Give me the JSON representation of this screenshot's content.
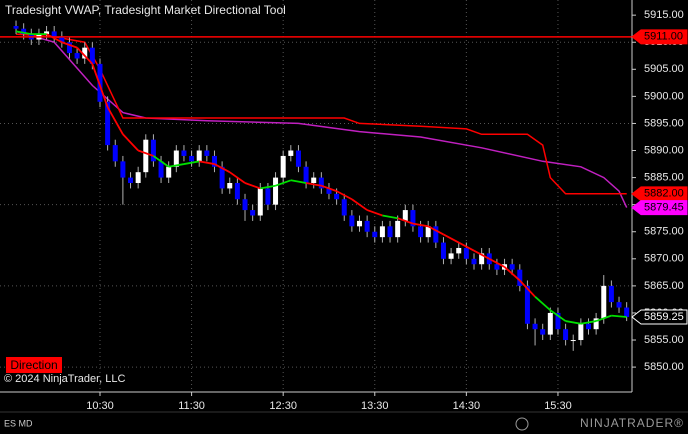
{
  "chart_data": {
    "type": "candlestick",
    "title": "Tradesight VWAP, Tradesight Market Directional Tool",
    "x": [
      575,
      580,
      585,
      590,
      595,
      600,
      605,
      610,
      615,
      620,
      625,
      630,
      635,
      640,
      645,
      650,
      655,
      660,
      665,
      670,
      675,
      680,
      685,
      690,
      695,
      700,
      705,
      710,
      715,
      720,
      725,
      730,
      735,
      740,
      745,
      750,
      755,
      760,
      765,
      770,
      775,
      780,
      785,
      790,
      795,
      800,
      805,
      810,
      815,
      820,
      825,
      830,
      835,
      840,
      845,
      850,
      855,
      860,
      865,
      870,
      875,
      880,
      885,
      890,
      895,
      900,
      905,
      910,
      915,
      920,
      925,
      930,
      935,
      940,
      945,
      950,
      955,
      960,
      965,
      970,
      975
    ],
    "open": [
      5913,
      5912.5,
      5911.5,
      5910.5,
      5911.5,
      5912,
      5911,
      5910,
      5908,
      5907,
      5909,
      5906,
      5899,
      5891,
      5888,
      5885,
      5884,
      5886,
      5892,
      5888,
      5885,
      5887,
      5890,
      5889,
      5888,
      5890,
      5889,
      5887,
      5883,
      5884,
      5881,
      5879,
      5878,
      5883,
      5880,
      5885,
      5889,
      5890,
      5887,
      5884,
      5885,
      5883,
      5882,
      5881,
      5878,
      5876,
      5877,
      5875,
      5874,
      5876,
      5874,
      5877,
      5879,
      5876,
      5874,
      5876,
      5873,
      5870,
      5871,
      5872,
      5870,
      5869,
      5871,
      5869,
      5868,
      5869,
      5868,
      5865,
      5858,
      5857,
      5856,
      5860,
      5857,
      5855,
      5855,
      5858,
      5857,
      5859,
      5865,
      5862,
      5861
    ],
    "high": [
      5914,
      5913.5,
      5912.5,
      5912.5,
      5913,
      5913,
      5912,
      5911,
      5909,
      5910,
      5910,
      5907,
      5900,
      5892,
      5889,
      5886,
      5887,
      5893,
      5893,
      5889,
      5888,
      5891,
      5891,
      5890,
      5891,
      5891,
      5890,
      5888,
      5885,
      5885,
      5882,
      5880,
      5884,
      5884,
      5886,
      5890,
      5891,
      5891,
      5888,
      5886,
      5886,
      5884,
      5883,
      5882,
      5879,
      5878,
      5878,
      5876,
      5877,
      5877,
      5878,
      5880,
      5880,
      5877,
      5877,
      5877,
      5874,
      5872,
      5873,
      5873,
      5871,
      5872,
      5872,
      5870,
      5870,
      5870,
      5869,
      5866,
      5859,
      5858,
      5861,
      5861,
      5858,
      5856,
      5859,
      5859,
      5860,
      5867,
      5866,
      5863,
      5862
    ],
    "low": [
      5911.5,
      5910.5,
      5909.5,
      5909.5,
      5910.5,
      5910,
      5909,
      5907,
      5906,
      5906,
      5905,
      5898,
      5890,
      5887,
      5880,
      5883,
      5883,
      5885,
      5887,
      5884,
      5884,
      5886,
      5888,
      5887,
      5887,
      5888,
      5886,
      5882,
      5882,
      5880,
      5877,
      5877,
      5877,
      5879,
      5879,
      5884,
      5888,
      5886,
      5883,
      5883,
      5882,
      5881,
      5880,
      5877,
      5875,
      5875,
      5874,
      5873,
      5873,
      5873,
      5873,
      5876,
      5875,
      5873,
      5873,
      5872,
      5869,
      5869,
      5870,
      5869,
      5868,
      5868,
      5868,
      5867,
      5867,
      5867,
      5864,
      5857,
      5854,
      5855,
      5855,
      5856,
      5854,
      5853,
      5854,
      5856,
      5856,
      5858,
      5861,
      5860,
      5858.5
    ],
    "close": [
      5912.5,
      5911.5,
      5910.5,
      5911.5,
      5912,
      5911,
      5910,
      5908,
      5907,
      5909,
      5906,
      5899,
      5891,
      5888,
      5885,
      5884,
      5886,
      5892,
      5888,
      5885,
      5887,
      5890,
      5889,
      5888,
      5890,
      5889,
      5887,
      5883,
      5884,
      5881,
      5879,
      5878,
      5883,
      5880,
      5885,
      5889,
      5890,
      5887,
      5884,
      5885,
      5883,
      5882,
      5881,
      5878,
      5876,
      5877,
      5875,
      5874,
      5876,
      5874,
      5877,
      5879,
      5876,
      5874,
      5876,
      5873,
      5870,
      5871,
      5872,
      5870,
      5869,
      5871,
      5869,
      5868,
      5869,
      5868,
      5865,
      5858,
      5857,
      5856,
      5860,
      5857,
      5855,
      5855,
      5858,
      5857,
      5859,
      5865,
      5862,
      5861,
      5859.25
    ],
    "up_color": "#ffffff",
    "down_color": "#0000ff",
    "wick_color": "#b0b0b0",
    "xlim": [
      564.5,
      978.5
    ],
    "xticks": [
      {
        "value": 630,
        "label": "10:30"
      },
      {
        "value": 690,
        "label": "11:30"
      },
      {
        "value": 750,
        "label": "12:30"
      },
      {
        "value": 810,
        "label": "13:30"
      },
      {
        "value": 870,
        "label": "14:30"
      },
      {
        "value": 930,
        "label": "15:30"
      }
    ],
    "ylim": [
      5845.4,
      5917.8
    ],
    "yticks": [
      {
        "value": 5850,
        "label": "5850.00"
      },
      {
        "value": 5855,
        "label": "5855.00"
      },
      {
        "value": 5860,
        "label": "5860.00"
      },
      {
        "value": 5865,
        "label": "5865.00"
      },
      {
        "value": 5870,
        "label": "5870.00"
      },
      {
        "value": 5875,
        "label": "5875.00"
      },
      {
        "value": 5880,
        "label": "5880.00"
      },
      {
        "value": 5885,
        "label": "5885.00"
      },
      {
        "value": 5890,
        "label": "5890.00"
      },
      {
        "value": 5895,
        "label": "5895.00"
      },
      {
        "value": 5900,
        "label": "5900.00"
      },
      {
        "value": 5905,
        "label": "5905.00"
      },
      {
        "value": 5910,
        "label": "5910.00"
      },
      {
        "value": 5915,
        "label": "5915.00"
      }
    ],
    "ygrid": [
      5850,
      5865,
      5880,
      5895,
      5910
    ],
    "grid_color": "#555555",
    "lines": [
      {
        "color": "#c020c0",
        "x": [
          575,
          600,
          625,
          645,
          660,
          700,
          760,
          800,
          840,
          880,
          920,
          945,
          960,
          970,
          975
        ],
        "values": [
          5912,
          5910,
          5902,
          5897,
          5896,
          5895.5,
          5895,
          5893.5,
          5892.5,
          5890.5,
          5888,
          5887,
          5885,
          5882.5,
          5879.45
        ]
      },
      {
        "color": "#ff0000",
        "x": [
          575,
          600,
          620,
          630,
          645,
          700,
          790,
          800,
          840,
          870,
          880,
          910,
          920,
          925,
          935,
          975
        ],
        "values": [
          5911.5,
          5911,
          5910,
          5905,
          5896,
          5896,
          5896,
          5895,
          5894.5,
          5894,
          5893,
          5893,
          5891,
          5885,
          5882,
          5882
        ]
      }
    ],
    "direction_line": {
      "x": [
        575,
        585,
        595,
        605,
        615,
        625,
        635,
        645,
        655,
        665,
        675,
        685,
        695,
        705,
        715,
        725,
        735,
        745,
        755,
        765,
        775,
        785,
        795,
        805,
        815,
        825,
        835,
        845,
        855,
        865,
        875,
        885,
        895,
        905,
        915,
        925,
        935,
        945,
        955,
        965,
        975
      ],
      "values": [
        5912,
        5911.5,
        5911.5,
        5910,
        5909,
        5906,
        5898,
        5893,
        5890,
        5889,
        5887,
        5887.5,
        5888,
        5887.5,
        5886,
        5884,
        5883,
        5883.5,
        5884.5,
        5884,
        5883.5,
        5882.5,
        5881,
        5879,
        5878,
        5877.5,
        5876.5,
        5876,
        5874.5,
        5873,
        5871.5,
        5870,
        5868.5,
        5866,
        5863,
        5860.5,
        5858.5,
        5858,
        5858.5,
        5859.5,
        5859.25
      ],
      "point_colors": [
        "#ff0000",
        "#00e000",
        "#00e000",
        "#ff0000",
        "#ff0000",
        "#ff0000",
        "#ff0000",
        "#ff0000",
        "#ff0000",
        "#ff0000",
        "#00e000",
        "#00e000",
        "#00e000",
        "#ff0000",
        "#ff0000",
        "#ff0000",
        "#ff0000",
        "#00e000",
        "#00e000",
        "#00e000",
        "#ff0000",
        "#ff0000",
        "#ff0000",
        "#ff0000",
        "#ff0000",
        "#00e000",
        "#ff0000",
        "#ff0000",
        "#ff0000",
        "#ff0000",
        "#ff0000",
        "#ff0000",
        "#ff0000",
        "#ff0000",
        "#ff0000",
        "#00e000",
        "#00e000",
        "#00e000",
        "#00e000",
        "#00e000",
        "#00e000"
      ]
    },
    "price_markers": [
      {
        "value": 5911,
        "label": "5911.00",
        "color": "#ff0000",
        "text_color": "#000000",
        "border": "#ff0000",
        "line": true
      },
      {
        "value": 5882,
        "label": "5882.00",
        "color": "#ff0000",
        "text_color": "#000000",
        "border": "#ff0000",
        "line": false
      },
      {
        "value": 5879.45,
        "label": "5879.45",
        "color": "#ff00ff",
        "text_color": "#000000",
        "border": "#ff00ff",
        "line": false
      },
      {
        "value": 5859.25,
        "label": "5859.25",
        "color": "#000000",
        "text_color": "#ffffff",
        "border": "#ffffff",
        "line": false
      }
    ],
    "direction_label": "Direction",
    "copyright": "© 2024 NinjaTrader, LLC",
    "instrument": "ES MD",
    "brand": "NINJATRADER®"
  }
}
